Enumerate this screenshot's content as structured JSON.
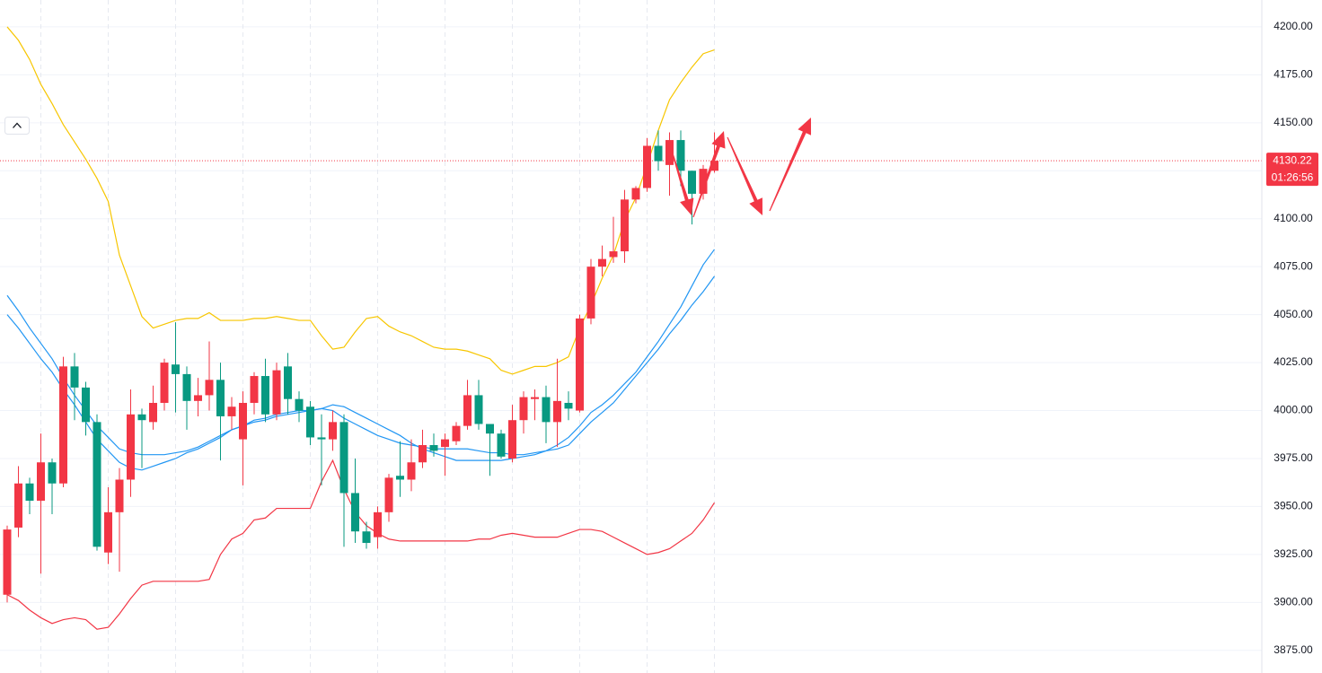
{
  "chart_data": {
    "type": "candlestick",
    "up_color": "#f23645",
    "down_color": "#089981",
    "open": [
      3904,
      3939,
      3962,
      3953,
      3973,
      3962,
      4023,
      4012,
      3994,
      3926,
      3947,
      3964,
      3998,
      3994,
      4004,
      4024,
      4019,
      4005,
      4008,
      4016,
      3997,
      3985,
      4004,
      4018,
      3998,
      4023,
      4006,
      4002,
      3986,
      3985,
      3994,
      3957,
      3937,
      3934,
      3947,
      3966,
      3964,
      3973,
      3982,
      3981,
      3984,
      3992,
      4008,
      3993,
      3988,
      3975,
      3995,
      4006,
      4007,
      3994,
      4004,
      4000,
      4048,
      4075,
      4080,
      4083,
      4110,
      4116,
      4138,
      4128,
      4141,
      4125,
      4113,
      4125
    ],
    "high": [
      3940,
      3971,
      3965,
      3988,
      3975,
      4028,
      4030,
      4015,
      3998,
      3960,
      3970,
      4011,
      4001,
      4013,
      4027,
      4046,
      4023,
      4017,
      4036,
      4025,
      4007,
      4010,
      4020,
      4027,
      4025,
      4030,
      4010,
      4005,
      3998,
      4000,
      3998,
      3975,
      3942,
      3950,
      3967,
      3984,
      3985,
      3990,
      3988,
      3988,
      3994,
      4016,
      4016,
      3993,
      3990,
      4003,
      4010,
      4011,
      4013,
      4027,
      4010,
      4050,
      4079,
      4086,
      4101,
      4115,
      4117,
      4142,
      4146,
      4145,
      4146,
      4125,
      4128,
      4145
    ],
    "low": [
      3900,
      3934,
      3946,
      3915,
      3946,
      3960,
      3995,
      3987,
      3927,
      3920,
      3916,
      3955,
      3970,
      3990,
      4000,
      3999,
      3990,
      3997,
      4000,
      3974,
      3990,
      3961,
      3998,
      3994,
      3995,
      3998,
      3994,
      3982,
      3961,
      3979,
      3929,
      3931,
      3928,
      3928,
      3942,
      3955,
      3958,
      3970,
      3976,
      3966,
      3982,
      3990,
      3990,
      3966,
      3975,
      3973,
      3988,
      3995,
      3983,
      3981,
      3995,
      3999,
      4045,
      4070,
      4077,
      4077,
      4108,
      4114,
      4125,
      4112,
      4117,
      4097,
      4110,
      4124
    ],
    "close": [
      3938,
      3962,
      3953,
      3973,
      3962,
      4023,
      4012,
      3994,
      3929,
      3947,
      3964,
      3998,
      3995,
      4004,
      4025,
      4019,
      4005,
      4008,
      4016,
      3997,
      4002,
      4004,
      4018,
      3998,
      4021,
      4006,
      4000,
      3986,
      3985,
      3994,
      3957,
      3937,
      3931,
      3947,
      3965,
      3964,
      3973,
      3982,
      3979,
      3985,
      3992,
      4008,
      3993,
      3988,
      3976,
      3995,
      4007,
      4007,
      3994,
      4005,
      4001,
      4048,
      4075,
      4079,
      4083,
      4110,
      4116,
      4138,
      4130,
      4141,
      4125,
      4113,
      4126,
      4130.22
    ],
    "lines": [
      {
        "color": "#f7c600",
        "values": [
          4200,
          4193,
          4183,
          4170,
          4160,
          4149,
          4140,
          4131,
          4121,
          4109,
          4081,
          4065,
          4049,
          4043,
          4045,
          4047,
          4048,
          4048,
          4051,
          4047,
          4047,
          4047,
          4048,
          4048,
          4049,
          4048,
          4047,
          4047,
          4039,
          4032,
          4033,
          4041,
          4048,
          4049,
          4044,
          4041,
          4039,
          4036,
          4033,
          4032,
          4032,
          4031,
          4029,
          4027,
          4021,
          4019,
          4021,
          4023,
          4023,
          4025,
          4028,
          4043,
          4055,
          4069,
          4081,
          4099,
          4111,
          4128,
          4146,
          4162,
          4171,
          4179,
          4186,
          4188
        ]
      },
      {
        "color": "#f23645",
        "values": [
          3904,
          3901,
          3896,
          3892,
          3889,
          3891,
          3892,
          3891,
          3886,
          3887,
          3894,
          3902,
          3909,
          3911,
          3911,
          3911,
          3911,
          3911,
          3912,
          3925,
          3933,
          3936,
          3943,
          3944,
          3949,
          3949,
          3949,
          3949,
          3963,
          3974,
          3959,
          3947,
          3940,
          3936,
          3933,
          3932,
          3932,
          3932,
          3932,
          3932,
          3932,
          3932,
          3933,
          3933,
          3935,
          3936,
          3935,
          3934,
          3934,
          3934,
          3936,
          3938,
          3938,
          3937,
          3934,
          3931,
          3928,
          3925,
          3926,
          3928,
          3932,
          3936,
          3943,
          3952
        ]
      },
      {
        "color": "#2196f3",
        "values": [
          4060,
          4052,
          4043,
          4035,
          4027,
          4017,
          4008,
          4000,
          3992,
          3986,
          3980,
          3978,
          3977,
          3977,
          3977,
          3978,
          3979,
          3981,
          3984,
          3987,
          3990,
          3992,
          3994,
          3995,
          3997,
          3998,
          3999,
          4000,
          4001,
          4003,
          4002,
          3999,
          3996,
          3993,
          3990,
          3987,
          3983,
          3980,
          3978,
          3976,
          3974,
          3974,
          3974,
          3974,
          3974,
          3975,
          3976,
          3977,
          3979,
          3982,
          3986,
          3992,
          3999,
          4003,
          4008,
          4014,
          4020,
          4028,
          4036,
          4045,
          4054,
          4065,
          4076,
          4084
        ]
      },
      {
        "color": "#2196f3",
        "values": [
          4050,
          4043,
          4035,
          4027,
          4020,
          4011,
          4003,
          3994,
          3985,
          3979,
          3973,
          3970,
          3969,
          3971,
          3973,
          3975,
          3978,
          3980,
          3983,
          3986,
          3990,
          3992,
          3995,
          3996,
          3998,
          3999,
          4000,
          4000,
          4001,
          4000,
          3996,
          3993,
          3990,
          3987,
          3985,
          3983,
          3982,
          3981,
          3980,
          3980,
          3980,
          3980,
          3979,
          3978,
          3978,
          3977,
          3977,
          3978,
          3979,
          3980,
          3982,
          3988,
          3994,
          3999,
          4004,
          4011,
          4018,
          4025,
          4032,
          4040,
          4047,
          4055,
          4062,
          4070
        ]
      }
    ],
    "ylim": [
      3863.2,
      4214.0
    ],
    "yticks": [
      {
        "value": 3875,
        "label": "3875.00"
      },
      {
        "value": 3900,
        "label": "3900.00"
      },
      {
        "value": 3925,
        "label": "3925.00"
      },
      {
        "value": 3950,
        "label": "3950.00"
      },
      {
        "value": 3975,
        "label": "3975.00"
      },
      {
        "value": 4000,
        "label": "4000.00"
      },
      {
        "value": 4025,
        "label": "4025.00"
      },
      {
        "value": 4050,
        "label": "4050.00"
      },
      {
        "value": 4075,
        "label": "4075.00"
      },
      {
        "value": 4100,
        "label": "4100.00"
      },
      {
        "value": 4125,
        "label": "4125.00"
      },
      {
        "value": 4150,
        "label": "4150.00"
      },
      {
        "value": 4175,
        "label": "4175.00"
      },
      {
        "value": 4200,
        "label": "4200.00"
      }
    ],
    "grid": true,
    "last_price": 4130.22,
    "countdown": "01:26:56",
    "last_price_color": "#f23645"
  }
}
